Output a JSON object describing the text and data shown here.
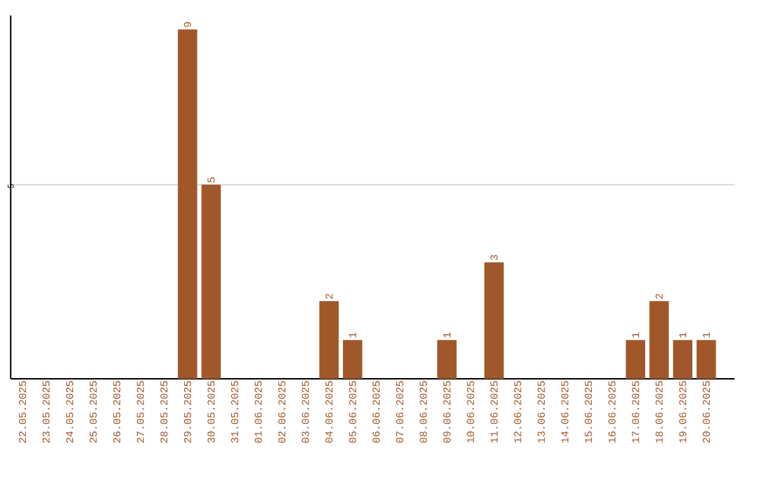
{
  "chart_data": {
    "type": "bar",
    "categories": [
      "22.05.2025",
      "23.05.2025",
      "24.05.2025",
      "25.05.2025",
      "26.05.2025",
      "27.05.2025",
      "28.05.2025",
      "29.05.2025",
      "30.05.2025",
      "31.05.2025",
      "01.06.2025",
      "02.06.2025",
      "03.06.2025",
      "04.06.2025",
      "05.06.2025",
      "06.06.2025",
      "07.06.2025",
      "08.06.2025",
      "09.06.2025",
      "10.06.2025",
      "11.06.2025",
      "12.06.2025",
      "13.06.2025",
      "14.06.2025",
      "15.06.2025",
      "16.06.2025",
      "17.06.2025",
      "18.06.2025",
      "19.06.2025",
      "20.06.2025"
    ],
    "values": [
      0,
      0,
      0,
      0,
      0,
      0,
      0,
      9,
      5,
      0,
      0,
      0,
      0,
      2,
      1,
      0,
      0,
      0,
      1,
      0,
      3,
      0,
      0,
      0,
      0,
      0,
      1,
      2,
      1,
      1
    ],
    "value_labels": [
      null,
      null,
      null,
      null,
      null,
      null,
      null,
      "9",
      "5",
      null,
      null,
      null,
      null,
      "2",
      "1",
      null,
      null,
      null,
      "1",
      null,
      "3",
      null,
      null,
      null,
      null,
      null,
      "1",
      "2",
      "1",
      "1"
    ],
    "color": "#a0572a",
    "ylim": [
      0,
      9.36
    ],
    "yticks": [
      5
    ],
    "grid": "y"
  }
}
